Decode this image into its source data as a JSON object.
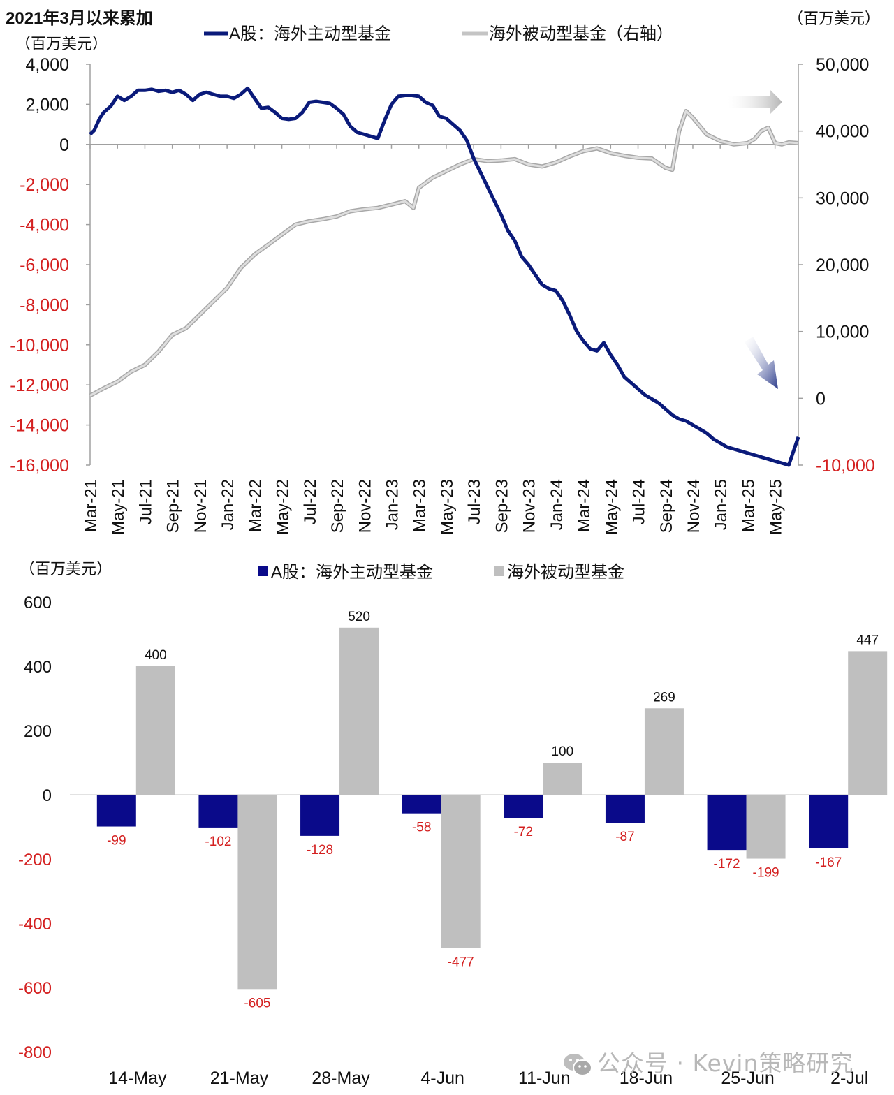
{
  "chart_data": [
    {
      "type": "line",
      "title": "2021年3月以来累加",
      "ylabel_left": "（百万美元）",
      "ylabel_right": "（百万美元）",
      "legend": [
        {
          "name": "A股：海外主动型基金",
          "color": "#0a1a7a",
          "axis": "left"
        },
        {
          "name": "海外被动型基金（右轴）",
          "color": "#c4c4c4",
          "axis": "right"
        }
      ],
      "legend_placement": "top",
      "x_ticks": [
        "Mar-21",
        "May-21",
        "Jul-21",
        "Sep-21",
        "Nov-21",
        "Jan-22",
        "Mar-22",
        "May-22",
        "Jul-22",
        "Sep-22",
        "Nov-22",
        "Jan-23",
        "Mar-23",
        "May-23",
        "Jul-23",
        "Sep-23",
        "Nov-23",
        "Jan-24",
        "Mar-24",
        "May-24",
        "Jul-24",
        "Sep-24",
        "Nov-24",
        "Jan-25",
        "Mar-25",
        "May-25"
      ],
      "y_left": {
        "ylim": [
          -16000,
          4000
        ],
        "ticks": [
          "4,000",
          "2,000",
          "0",
          "-2,000",
          "-4,000",
          "-6,000",
          "-8,000",
          "-10,000",
          "-12,000",
          "-14,000",
          "-16,000"
        ],
        "tick_values": [
          4000,
          2000,
          0,
          -2000,
          -4000,
          -6000,
          -8000,
          -10000,
          -12000,
          -14000,
          -16000
        ]
      },
      "y_right": {
        "ylim": [
          -10000,
          50000
        ],
        "ticks": [
          "50,000",
          "40,000",
          "30,000",
          "20,000",
          "10,000",
          "0",
          "-10,000"
        ],
        "tick_values": [
          50000,
          40000,
          30000,
          20000,
          10000,
          0,
          -10000
        ]
      },
      "negative_tick_color": "#d42020",
      "x_months_span": [
        0,
        51.7
      ],
      "series": [
        {
          "name": "A股：海外主动型基金",
          "axis": "left",
          "x_month_index": [
            0,
            0.3,
            0.7,
            1,
            1.5,
            2,
            2.5,
            3,
            3.5,
            4,
            4.5,
            5,
            5.5,
            6,
            6.5,
            7,
            7.5,
            8,
            8.5,
            9,
            9.5,
            10,
            10.5,
            11,
            11.5,
            12,
            12.5,
            13,
            13.5,
            14,
            14.5,
            15,
            15.5,
            16,
            16.5,
            17,
            17.5,
            18,
            18.5,
            19,
            19.5,
            20,
            20.5,
            21,
            21.5,
            22,
            22.5,
            23,
            23.5,
            24,
            24.5,
            25,
            25.5,
            26,
            26.5,
            27,
            27.5,
            28,
            28.5,
            29,
            29.5,
            30,
            30.5,
            31,
            31.5,
            32,
            32.5,
            33,
            33.5,
            34,
            34.5,
            35,
            35.5,
            36,
            36.5,
            37,
            37.5,
            38,
            38.5,
            39,
            39.5,
            40,
            40.5,
            41,
            41.5,
            42,
            42.5,
            43,
            43.5,
            44,
            44.5,
            45,
            45.5,
            46,
            46.5,
            47,
            47.5,
            48,
            48.5,
            49,
            49.5,
            50,
            50.5,
            51,
            51.7
          ],
          "values": [
            500,
            700,
            1300,
            1600,
            1900,
            2400,
            2200,
            2400,
            2700,
            2700,
            2750,
            2650,
            2700,
            2600,
            2700,
            2500,
            2200,
            2500,
            2600,
            2500,
            2400,
            2400,
            2300,
            2500,
            2800,
            2300,
            1800,
            1850,
            1600,
            1300,
            1250,
            1300,
            1600,
            2100,
            2150,
            2100,
            2050,
            1800,
            1500,
            900,
            600,
            500,
            400,
            300,
            1200,
            2000,
            2400,
            2450,
            2450,
            2400,
            2100,
            1950,
            1400,
            1300,
            1000,
            700,
            200,
            -700,
            -1400,
            -2100,
            -2800,
            -3500,
            -4300,
            -4800,
            -5600,
            -6000,
            -6500,
            -7000,
            -7200,
            -7300,
            -7800,
            -8500,
            -9300,
            -9800,
            -10200,
            -10300,
            -9900,
            -10500,
            -11000,
            -11600,
            -11900,
            -12200,
            -12500,
            -12700,
            -12900,
            -13200,
            -13500,
            -13700,
            -13800,
            -14000,
            -14200,
            -14400,
            -14700,
            -14900,
            -15100,
            -15200,
            -15300,
            -15400,
            -15500,
            -15600,
            -15700,
            -15800,
            -15900,
            -16000,
            -14600
          ],
          "color": "#0a1a7a"
        },
        {
          "name": "海外被动型基金（右轴）",
          "axis": "right",
          "x_month_index": [
            0,
            1,
            2,
            3,
            4,
            5,
            6,
            7,
            8,
            9,
            10,
            11,
            12,
            13,
            14,
            15,
            16,
            17,
            18,
            19,
            20,
            21,
            22,
            23,
            23.6,
            24,
            25,
            26,
            27,
            28,
            29,
            30,
            31,
            32,
            33,
            34,
            35,
            36,
            37,
            38,
            39,
            40,
            41,
            42,
            42.5,
            43,
            43.5,
            44,
            45,
            46,
            47,
            48,
            48.5,
            49,
            49.5,
            50,
            50.5,
            51,
            51.7
          ],
          "values": [
            400,
            1500,
            2500,
            4000,
            5000,
            7000,
            9500,
            10500,
            12500,
            14500,
            16500,
            19500,
            21500,
            23000,
            24500,
            26000,
            26500,
            26800,
            27200,
            28000,
            28300,
            28500,
            29000,
            29500,
            28500,
            31500,
            33000,
            34000,
            35000,
            35800,
            35500,
            35600,
            35800,
            35000,
            34700,
            35300,
            36200,
            37000,
            37400,
            36700,
            36300,
            36000,
            35900,
            34500,
            34200,
            40000,
            43000,
            42000,
            39500,
            38500,
            38000,
            38200,
            38800,
            40000,
            40500,
            38200,
            38000,
            38300,
            38200
          ],
          "color": "#c4c4c4"
        }
      ],
      "annotations": [
        "right-arrow-gray",
        "down-arrow-navy"
      ]
    },
    {
      "type": "bar",
      "ylabel": "（百万美元）",
      "legend": [
        {
          "name": "A股：海外主动型基金",
          "color": "#0a0a8a"
        },
        {
          "name": "海外被动型基金",
          "color": "#bfbfbf"
        }
      ],
      "legend_placement": "top",
      "categories": [
        "14-May",
        "21-May",
        "28-May",
        "4-Jun",
        "11-Jun",
        "18-Jun",
        "25-Jun",
        "2-Jul"
      ],
      "series": [
        {
          "name": "A股：海外主动型基金",
          "values": [
            -99,
            -102,
            -128,
            -58,
            -72,
            -87,
            -172,
            -167
          ],
          "color": "#0a0a8a"
        },
        {
          "name": "海外被动型基金",
          "values": [
            400,
            -605,
            520,
            -477,
            100,
            269,
            -199,
            447
          ],
          "color": "#bfbfbf"
        }
      ],
      "data_labels": {
        "A股：海外主动型基金": [
          "-99",
          "-102",
          "-128",
          "-58",
          "-72",
          "-87",
          "-172",
          "-167"
        ],
        "海外被动型基金": [
          "400",
          "-605",
          "520",
          "-477",
          "100",
          "269",
          "-199",
          "447"
        ]
      },
      "ylim": [
        -800,
        600
      ],
      "y_ticks": [
        "600",
        "400",
        "200",
        "0",
        "-200",
        "-400",
        "-600",
        "-800"
      ],
      "y_tick_values": [
        600,
        400,
        200,
        0,
        -200,
        -400,
        -600,
        -800
      ],
      "negative_label_color": "#d42020",
      "grid": false
    }
  ],
  "watermark": {
    "text": "公众号 · Kevin策略研究",
    "icon": "wechat-icon"
  }
}
